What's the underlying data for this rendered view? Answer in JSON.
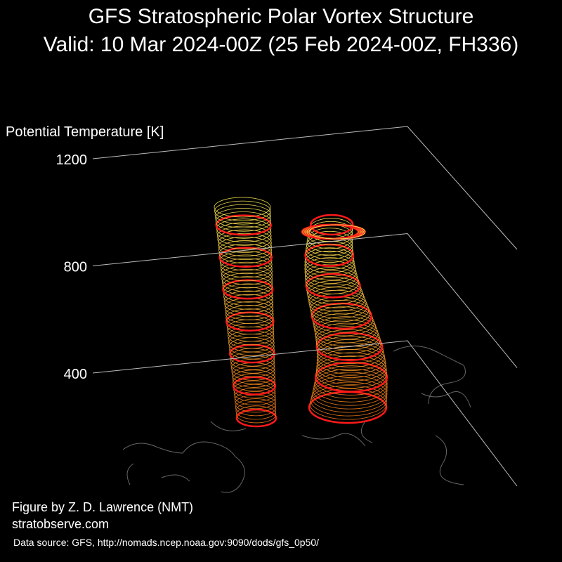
{
  "chart_data": {
    "type": "vortex3d",
    "title": "GFS Stratospheric Polar Vortex Structure",
    "subtitle": "Valid: 10 Mar 2024-00Z  (25 Feb 2024-00Z, FH336)",
    "zlabel": "Potential Temperature [K]",
    "zticks": [
      400,
      800,
      1200
    ],
    "annotations": [
      "Figure by Z. D. Lawrence (NMT)",
      "stratobserve.com",
      "Data source: GFS, http://nomads.ncep.noaa.gov:9090/dods/gfs_0p50/"
    ]
  }
}
